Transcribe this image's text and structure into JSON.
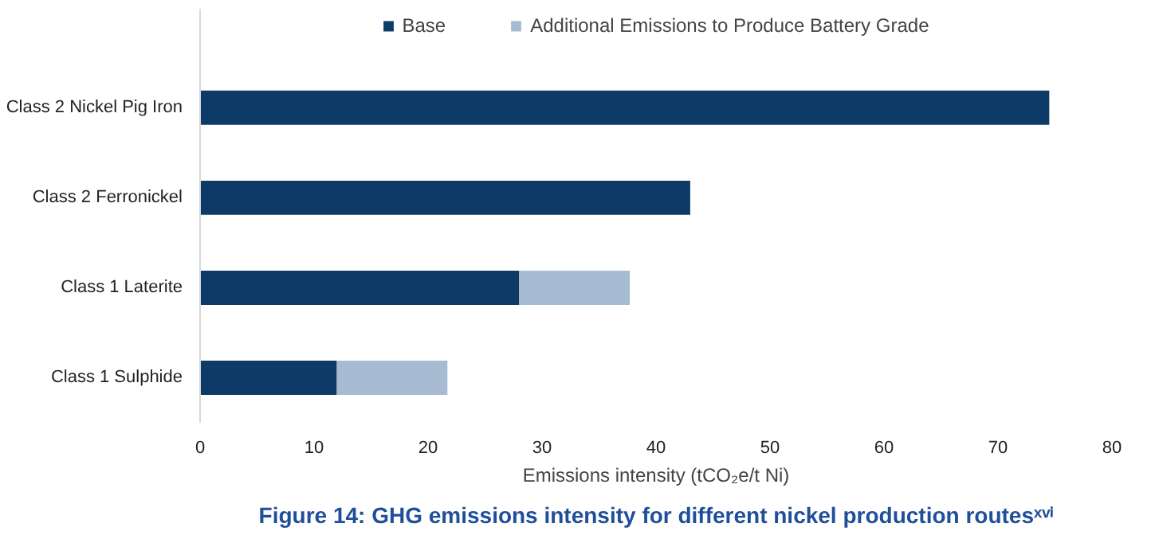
{
  "chart_data": {
    "type": "bar",
    "orientation": "horizontal",
    "stacked": true,
    "title": "Figure 14: GHG emissions intensity for different nickel production routesˣᵛⁱ",
    "xlabel": "Emissions intensity (tCO₂e/t Ni)",
    "categories": [
      "Class 2 Nickel Pig Iron",
      "Class 2 Ferronickel",
      "Class 1 Laterite",
      "Class 1 Sulphide"
    ],
    "series": [
      {
        "name": "Base",
        "color": "#0e3a68",
        "values": [
          74.5,
          43,
          28,
          12
        ]
      },
      {
        "name": "Additional Emissions to Produce Battery Grade",
        "color": "#a7bbd2",
        "values": [
          null,
          null,
          9.7,
          9.7
        ]
      }
    ],
    "xlim": [
      0,
      80
    ],
    "xticks": [
      0,
      10,
      20,
      30,
      40,
      50,
      60,
      70,
      80
    ],
    "grid": false,
    "legend": "top"
  }
}
